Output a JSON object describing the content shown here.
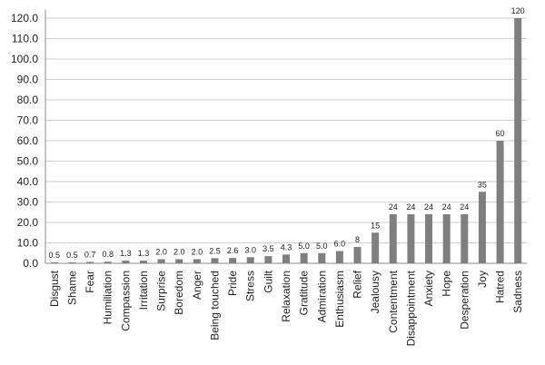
{
  "chart_data": {
    "type": "bar",
    "categories": [
      "Disgust",
      "Shame",
      "Fear",
      "Humiliation",
      "Compassion",
      "Irritation",
      "Surprise",
      "Boredom",
      "Anger",
      "Being touched",
      "Pride",
      "Stress",
      "Guilt",
      "Relaxation",
      "Gratitude",
      "Admiration",
      "Enthusiasm",
      "Relief",
      "Jealousy",
      "Contentment",
      "Disappointment",
      "Anxiety",
      "Hope",
      "Desperation",
      "Joy",
      "Hatred",
      "Sadness"
    ],
    "values": [
      0.5,
      0.5,
      0.7,
      0.8,
      1.3,
      1.3,
      2,
      2,
      2,
      2.5,
      2.6,
      3,
      3.5,
      4.3,
      5,
      5,
      6,
      8,
      15,
      24,
      24,
      24,
      24,
      24,
      35,
      60,
      120
    ],
    "value_labels": [
      "0.5",
      "0.5",
      "0.7",
      "0.8",
      "1.3",
      "1.3",
      "2.0",
      "2.0",
      "2.0",
      "2.5",
      "2.6",
      "3.0",
      "3.5",
      "4.3",
      "5.0",
      "5.0",
      "6.0",
      "8",
      "15",
      "24",
      "24",
      "24",
      "24",
      "24",
      "35",
      "60",
      "120"
    ],
    "color": "#7f7f7f",
    "ylim": [
      0,
      124
    ],
    "yticks": [
      {
        "value": 0,
        "label": "0.0"
      },
      {
        "value": 10,
        "label": "10.0"
      },
      {
        "value": 20,
        "label": "20.0"
      },
      {
        "value": 30,
        "label": "30.0"
      },
      {
        "value": 40,
        "label": "40.0"
      },
      {
        "value": 50,
        "label": "50.0"
      },
      {
        "value": 60,
        "label": "60.0"
      },
      {
        "value": 70,
        "label": "70.0"
      },
      {
        "value": 80,
        "label": "80.0"
      },
      {
        "value": 90,
        "label": "90.0"
      },
      {
        "value": 100,
        "label": "100.0"
      },
      {
        "value": 110,
        "label": "110.0"
      },
      {
        "value": 120,
        "label": "120.0"
      }
    ],
    "grid": true
  }
}
